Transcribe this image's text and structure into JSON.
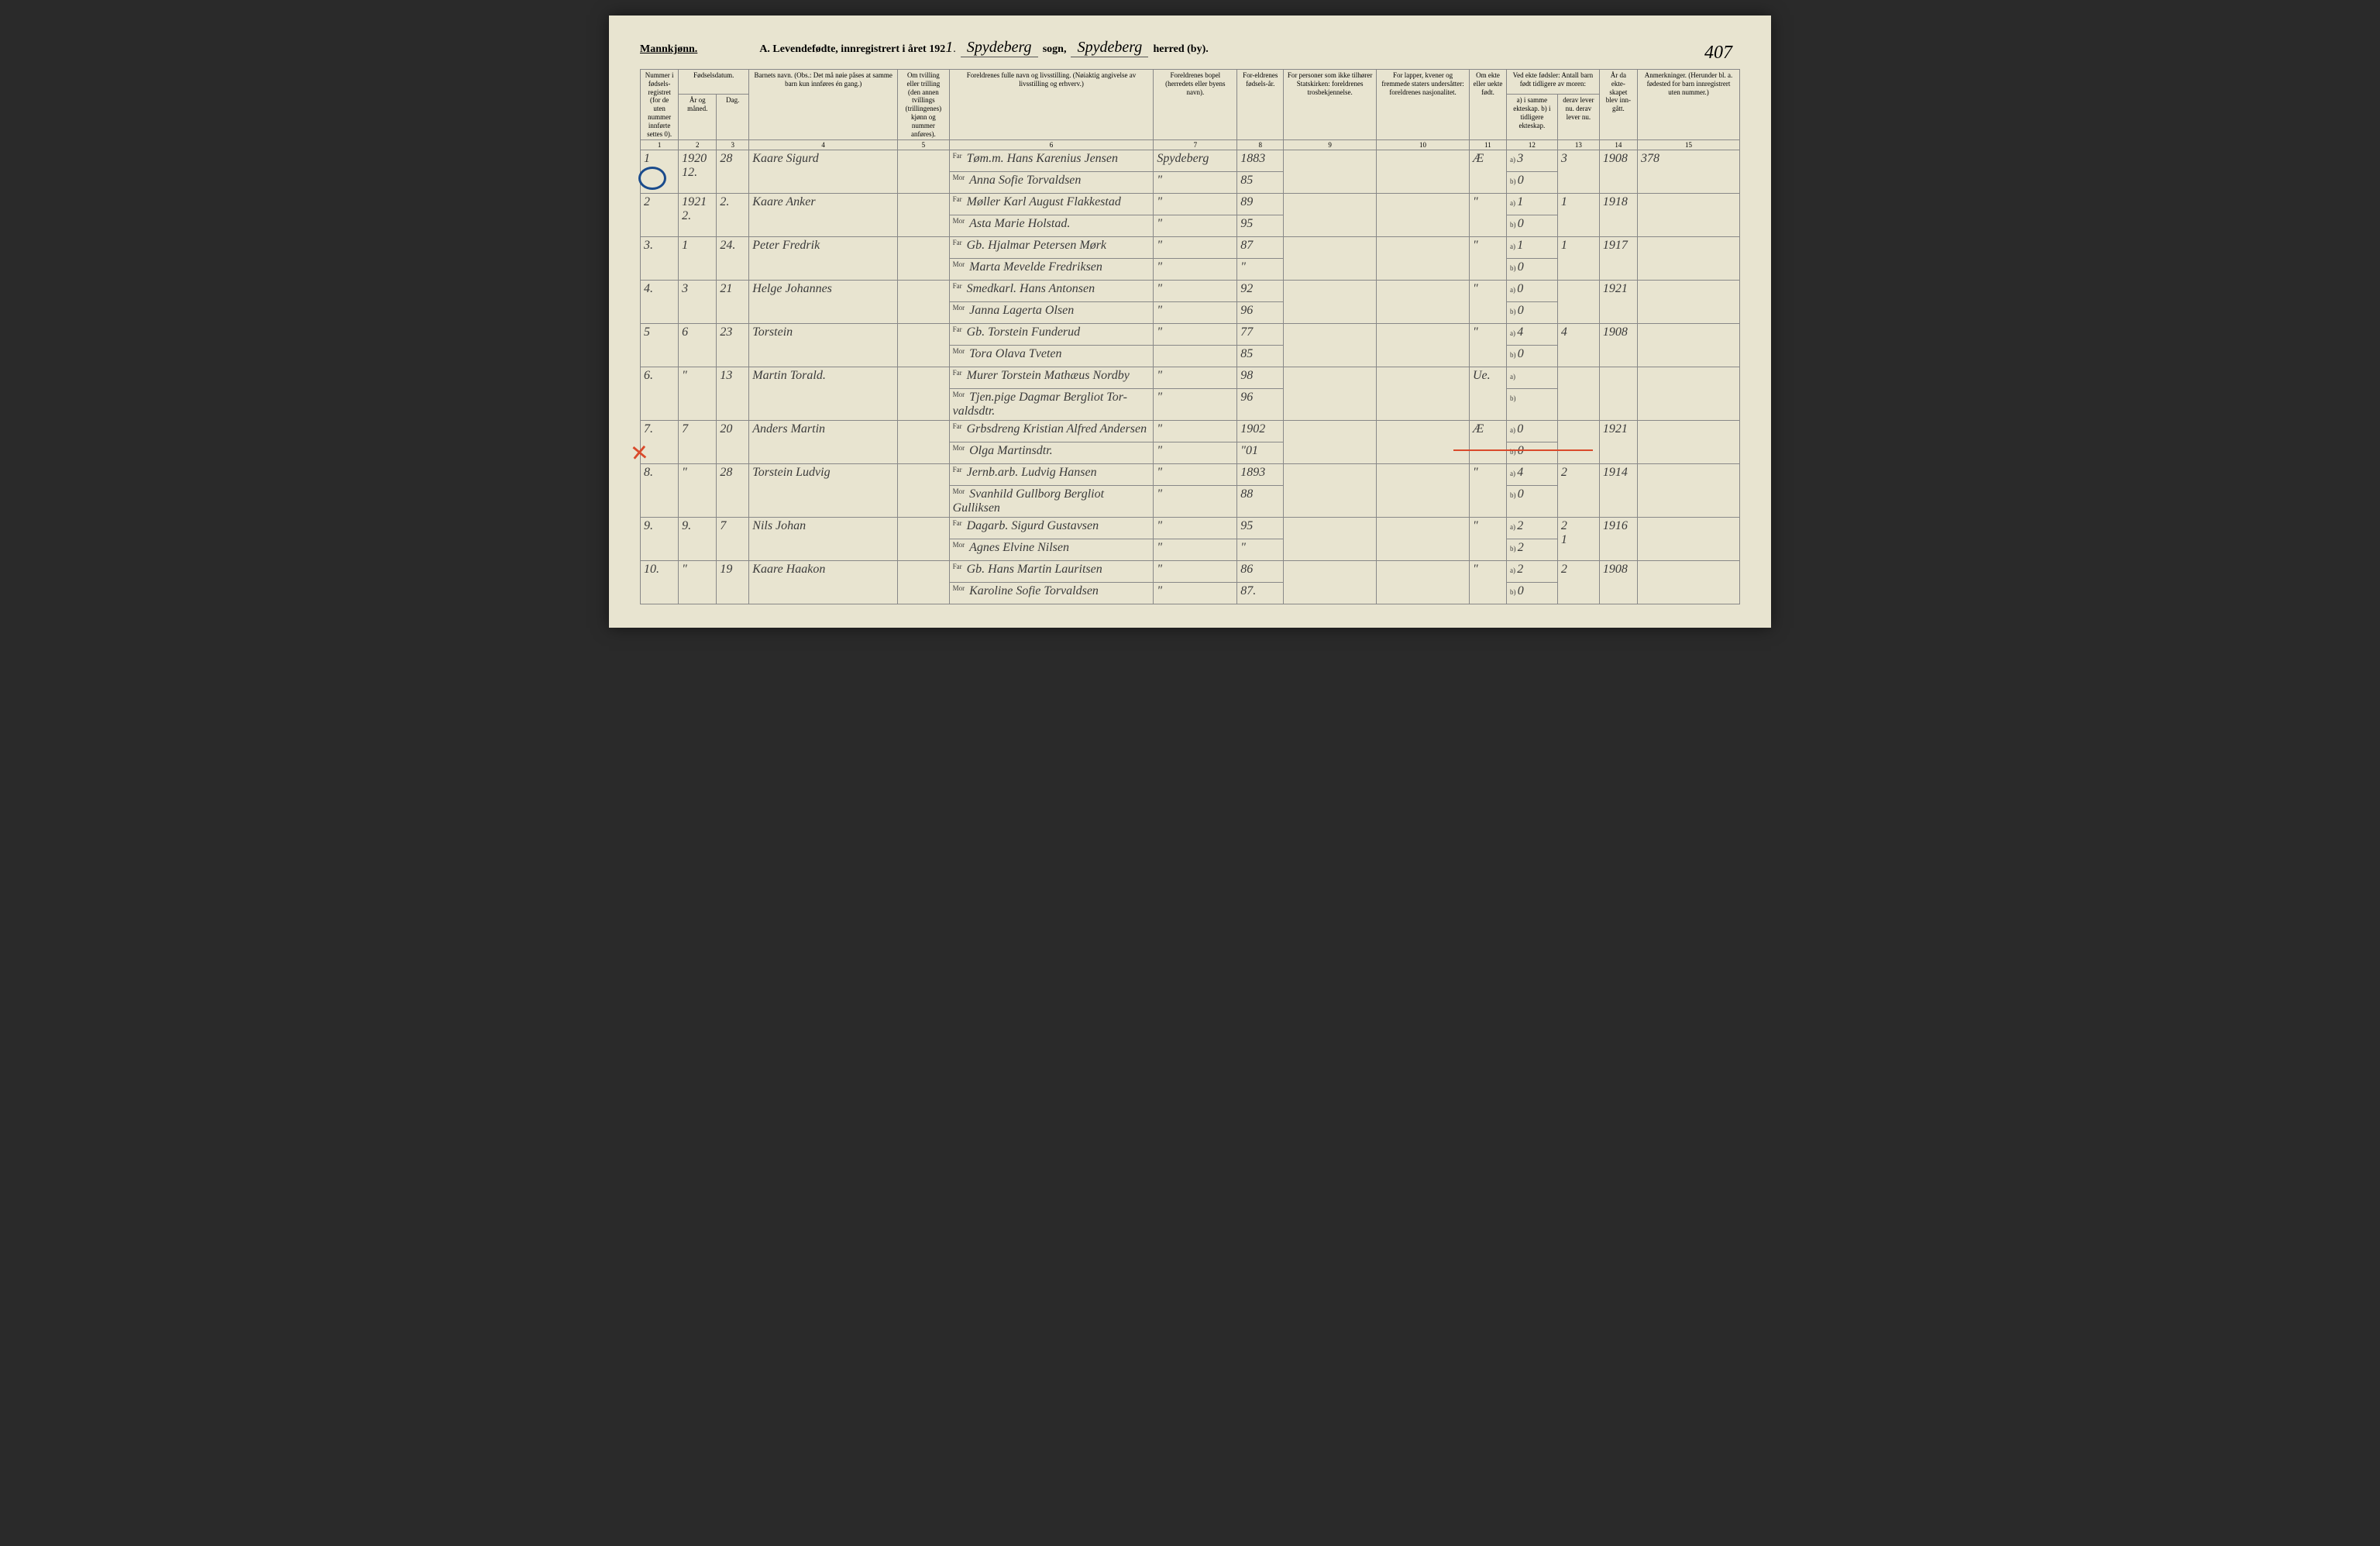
{
  "header": {
    "gender": "Mannkjønn.",
    "title_prefix": "A.  Levendefødte, innregistrert i året 192",
    "year_suffix": "1",
    "sogn_label": "sogn,",
    "sogn_value": "Spydeberg",
    "herred_label": "herred (by).",
    "herred_value": "Spydeberg",
    "page_number": "407"
  },
  "columns": {
    "c1": "Nummer i fødsels-registret (for de uten nummer innførte settes 0).",
    "c2_top": "Fødselsdatum.",
    "c2": "År og måned.",
    "c3": "Dag.",
    "c4": "Barnets navn.\n(Obs.: Det må nøie påses at samme barn kun innføres én gang.)",
    "c5": "Om tvilling eller trilling (den annen tvillings (trillingenes) kjønn og nummer anføres).",
    "c6": "Foreldrenes fulle navn og livsstilling.\n(Nøiaktig angivelse av livsstilling og erhverv.)",
    "c7": "Foreldrenes bopel\n(herredets eller byens navn).",
    "c8": "For-eldrenes fødsels-år.",
    "c9": "For personer som ikke tilhører Statskirken:\nforeldrenes trosbekjennelse.",
    "c10": "For lapper, kvener og fremmede staters undersåtter:\nforeldrenes nasjonalitet.",
    "c11": "Om ekte eller uekte født.",
    "c12_top": "Ved ekte fødsler:\nAntall barn født tidligere av moren:",
    "c12": "a) i samme ekteskap.\nb) i tidligere ekteskap.",
    "c13": "derav lever nu.\nderav lever nu.",
    "c14": "År da ekte-skapet blev inn-gått.",
    "c15": "Anmerkninger.\n(Herunder bl. a. fødested for barn innregistrert uten nummer.)"
  },
  "colnums": [
    "1",
    "2",
    "3",
    "4",
    "5",
    "6",
    "7",
    "8",
    "9",
    "10",
    "11",
    "12",
    "13",
    "14",
    "15"
  ],
  "rows": [
    {
      "num": "1",
      "year_month": "1920\n12.",
      "day": "28",
      "child": "Kaare Sigurd",
      "far": "Tøm.m. Hans Karenius Jensen",
      "mor": "Anna Sofie Torvaldsen",
      "bopel_far": "Spydeberg",
      "bopel_mor": "\"",
      "fy_far": "1883",
      "fy_mor": "85",
      "ekte": "Æ",
      "a": "3",
      "b": "0",
      "lever": "3",
      "aar": "1908",
      "anm": "378"
    },
    {
      "num": "2",
      "year_month": "1921\n2.",
      "day": "2.",
      "child": "Kaare Anker",
      "far": "Møller Karl August Flakkestad",
      "mor": "Asta Marie Holstad.",
      "bopel_far": "\"",
      "bopel_mor": "\"",
      "fy_far": "89",
      "fy_mor": "95",
      "ekte": "\"",
      "a": "1",
      "b": "0",
      "lever": "1",
      "aar": "1918",
      "anm": ""
    },
    {
      "num": "3.",
      "year_month": "1",
      "day": "24.",
      "child": "Peter Fredrik",
      "far": "Gb. Hjalmar Petersen Mørk",
      "mor": "Marta Mevelde Fredriksen",
      "bopel_far": "\"",
      "bopel_mor": "\"",
      "fy_far": "87",
      "fy_mor": "\"",
      "ekte": "\"",
      "a": "1",
      "b": "0",
      "lever": "1",
      "aar": "1917",
      "anm": ""
    },
    {
      "num": "4.",
      "year_month": "3",
      "day": "21",
      "child": "Helge Johannes",
      "far": "Smedkarl. Hans Antonsen",
      "mor": "Janna Lagerta Olsen",
      "bopel_far": "\"",
      "bopel_mor": "\"",
      "fy_far": "92",
      "fy_mor": "96",
      "ekte": "\"",
      "a": "0",
      "b": "0",
      "lever": "",
      "aar": "1921",
      "anm": ""
    },
    {
      "num": "5",
      "year_month": "6",
      "day": "23",
      "child": "Torstein",
      "far": "Gb. Torstein Funderud",
      "mor": "Tora Olava Tveten",
      "bopel_far": "\"",
      "bopel_mor": "",
      "fy_far": "77",
      "fy_mor": "85",
      "ekte": "\"",
      "a": "4",
      "b": "0",
      "lever": "4",
      "aar": "1908",
      "anm": ""
    },
    {
      "num": "6.",
      "year_month": "\"",
      "day": "13",
      "child": "Martin Torald.",
      "far": "Murer Torstein Mathæus Nordby",
      "mor": "Tjen.pige Dagmar Bergliot Tor-valdsdtr.",
      "bopel_far": "\"",
      "bopel_mor": "\"",
      "fy_far": "98",
      "fy_mor": "96",
      "ekte": "Ue.",
      "a": "",
      "b": "",
      "lever": "",
      "aar": "",
      "anm": ""
    },
    {
      "num": "7.",
      "year_month": "7",
      "day": "20",
      "child": "Anders Martin",
      "far": "Grbsdreng Kristian Alfred Andersen",
      "mor": "Olga Martinsdtr.",
      "bopel_far": "\"",
      "bopel_mor": "\"",
      "fy_far": "1902",
      "fy_mor": "\"01",
      "ekte": "Æ",
      "a": "0",
      "b": "0",
      "lever": "",
      "aar": "1921",
      "anm": ""
    },
    {
      "num": "8.",
      "year_month": "\"",
      "day": "28",
      "child": "Torstein Ludvig",
      "far": "Jernb.arb. Ludvig Hansen",
      "mor": "Svanhild Gullborg Bergliot Gulliksen",
      "bopel_far": "\"",
      "bopel_mor": "\"",
      "fy_far": "1893",
      "fy_mor": "88",
      "ekte": "\"",
      "a": "4",
      "b": "0",
      "lever": "2",
      "aar": "1914",
      "anm": ""
    },
    {
      "num": "9.",
      "year_month": "9.",
      "day": "7",
      "child": "Nils Johan",
      "far": "Dagarb. Sigurd Gustavsen",
      "mor": "Agnes Elvine Nilsen",
      "bopel_far": "\"",
      "bopel_mor": "\"",
      "fy_far": "95",
      "fy_mor": "\"",
      "ekte": "\"",
      "a": "2",
      "b": "2",
      "lever": "2\n1",
      "aar": "1916",
      "anm": ""
    },
    {
      "num": "10.",
      "year_month": "\"",
      "day": "19",
      "child": "Kaare Haakon",
      "far": "Gb. Hans Martin Lauritsen",
      "mor": "Karoline Sofie Torvaldsen",
      "bopel_far": "\"",
      "bopel_mor": "\"",
      "fy_far": "86",
      "fy_mor": "87.",
      "ekte": "\"",
      "a": "2",
      "b": "0",
      "lever": "2",
      "aar": "1908",
      "anm": ""
    }
  ],
  "style": {
    "page_bg": "#e8e4d0",
    "border_color": "#888",
    "handwriting_color": "#3a3a3a",
    "circle_color": "#1a4b8c",
    "x_color": "#d94a2b"
  }
}
